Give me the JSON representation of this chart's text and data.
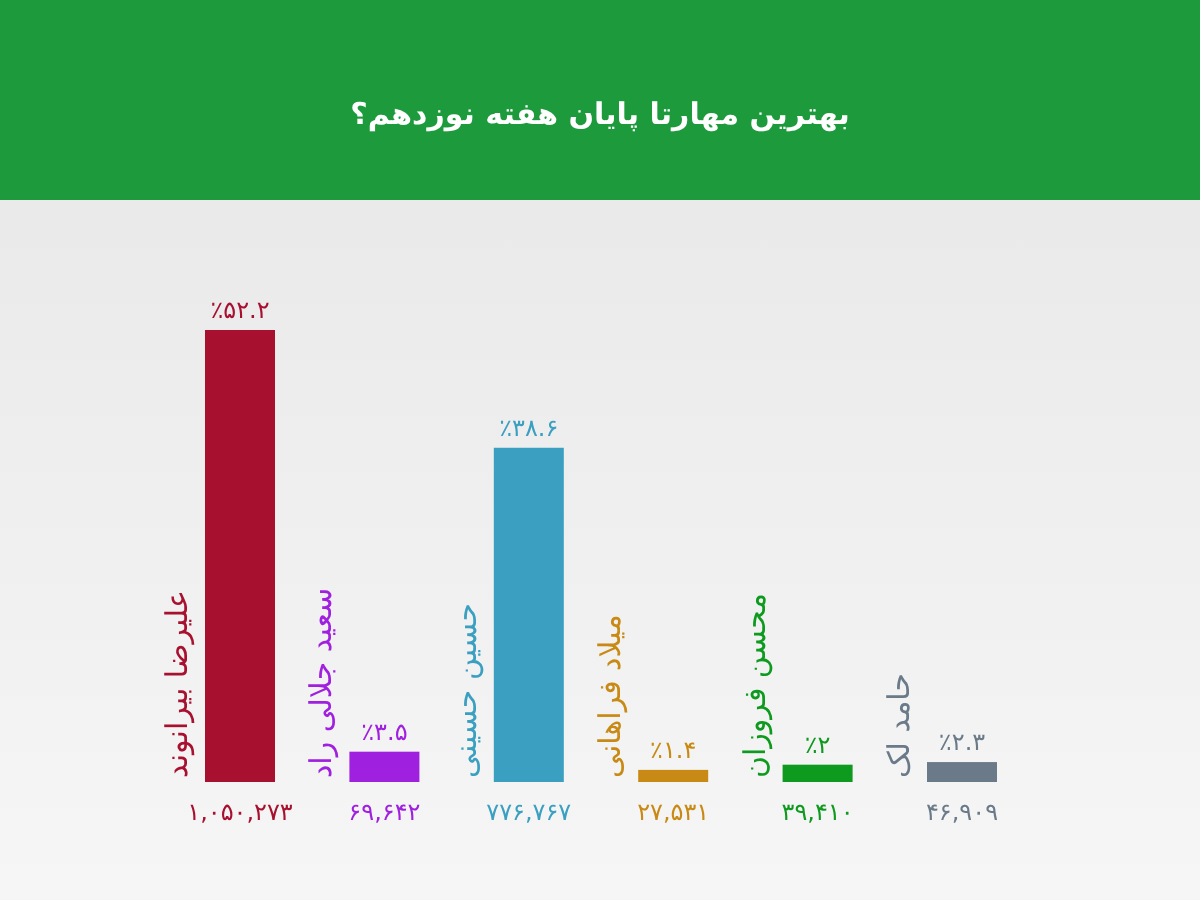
{
  "chart_data": {
    "type": "bar",
    "title": "بهترین مهارتا پایان هفته نوزدهم؟",
    "categories": [
      "علیرضا بیرانوند",
      "سعید جلالی راد",
      "حسین حسینی",
      "میلاد فراهانی",
      "محسن فروزان",
      "حامد لک"
    ],
    "values": [
      52.2,
      3.5,
      38.6,
      1.4,
      2,
      2.3
    ],
    "colors": [
      "#a8102f",
      "#a020e0",
      "#3a9fc0",
      "#c88a14",
      "#0e9a1e",
      "#6a7a88"
    ],
    "value_labels": [
      "٪۵۲.۲",
      "٪۳.۵",
      "٪۳۸.۶",
      "٪۱.۴",
      "٪۲",
      "٪۲.۳"
    ],
    "annotations": [
      "۱,۰۵۰,۲۷۳",
      "۶۹,۶۴۲",
      "۷۷۶,۷۶۷",
      "۲۷,۵۳۱",
      "۳۹,۴۱۰",
      "۴۶,۹۰۹"
    ]
  }
}
